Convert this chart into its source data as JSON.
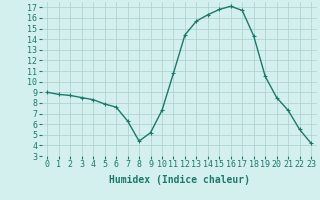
{
  "x": [
    0,
    1,
    2,
    3,
    4,
    5,
    6,
    7,
    8,
    9,
    10,
    11,
    12,
    13,
    14,
    15,
    16,
    17,
    18,
    19,
    20,
    21,
    22,
    23
  ],
  "y": [
    9.0,
    8.8,
    8.7,
    8.5,
    8.3,
    7.9,
    7.6,
    6.3,
    4.4,
    5.2,
    7.3,
    10.8,
    14.4,
    15.7,
    16.3,
    16.8,
    17.1,
    16.7,
    14.3,
    10.5,
    8.5,
    7.3,
    5.5,
    4.2
  ],
  "line_color": "#1a7a6a",
  "marker": "+",
  "marker_size": 3,
  "bg_color": "#d4f0ee",
  "grid_color": "#aacfcc",
  "xlabel": "Humidex (Indice chaleur)",
  "xlim": [
    -0.5,
    23.5
  ],
  "ylim": [
    3,
    17.5
  ],
  "yticks": [
    3,
    4,
    5,
    6,
    7,
    8,
    9,
    10,
    11,
    12,
    13,
    14,
    15,
    16,
    17
  ],
  "xticks": [
    0,
    1,
    2,
    3,
    4,
    5,
    6,
    7,
    8,
    9,
    10,
    11,
    12,
    13,
    14,
    15,
    16,
    17,
    18,
    19,
    20,
    21,
    22,
    23
  ],
  "xlabel_fontsize": 7,
  "tick_fontsize": 6,
  "line_width": 1.0
}
